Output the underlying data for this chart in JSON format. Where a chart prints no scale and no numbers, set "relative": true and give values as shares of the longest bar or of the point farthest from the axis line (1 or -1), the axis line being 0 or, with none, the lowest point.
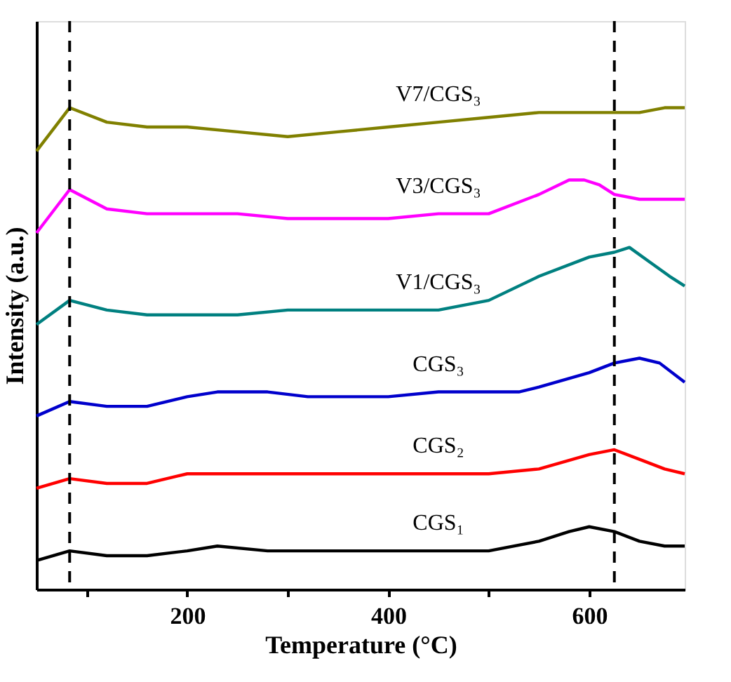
{
  "chart_data": {
    "type": "line",
    "relative": true,
    "xlabel": "Temperature (°C)",
    "ylabel": "Intensity (a.u.)",
    "xlim": [
      50,
      695
    ],
    "xticks": [
      {
        "value": 100,
        "label": null
      },
      200,
      {
        "value": 300,
        "label": null
      },
      400,
      {
        "value": 500,
        "label": null
      },
      600
    ],
    "grid": false,
    "legend": false,
    "line_style": "solid",
    "marker": "none",
    "ref_lines": [
      {
        "axis": "x",
        "value": 83,
        "label": null,
        "color": "#000000",
        "line_style": "dashed"
      },
      {
        "axis": "x",
        "value": 625,
        "label": null,
        "color": "#000000",
        "line_style": "dashed"
      }
    ],
    "series": [
      {
        "name": "V7/CGS₃",
        "color": "#808000",
        "x": [
          50,
          83,
          120,
          160,
          200,
          250,
          300,
          350,
          400,
          450,
          500,
          550,
          600,
          625,
          650,
          675,
          695
        ],
        "values": [
          0.91,
          1.0,
          0.97,
          0.96,
          0.96,
          0.95,
          0.94,
          0.95,
          0.96,
          0.97,
          0.98,
          0.99,
          0.99,
          0.99,
          0.99,
          1.0,
          1.0
        ]
      },
      {
        "name": "V3/CGS₃",
        "color": "#ff00ff",
        "x": [
          50,
          83,
          120,
          160,
          200,
          250,
          300,
          350,
          400,
          450,
          500,
          550,
          580,
          595,
          610,
          625,
          650,
          675,
          695
        ],
        "values": [
          0.74,
          0.83,
          0.79,
          0.78,
          0.78,
          0.78,
          0.77,
          0.77,
          0.77,
          0.78,
          0.78,
          0.82,
          0.85,
          0.85,
          0.84,
          0.82,
          0.81,
          0.81,
          0.81
        ]
      },
      {
        "name": "V1/CGS₃",
        "color": "#008080",
        "x": [
          50,
          83,
          120,
          160,
          200,
          250,
          300,
          350,
          400,
          450,
          500,
          550,
          600,
          625,
          640,
          660,
          680,
          695
        ],
        "values": [
          0.55,
          0.6,
          0.58,
          0.57,
          0.57,
          0.57,
          0.58,
          0.58,
          0.58,
          0.58,
          0.6,
          0.65,
          0.69,
          0.7,
          0.71,
          0.68,
          0.65,
          0.63
        ]
      },
      {
        "name": "CGS₃",
        "color": "#0000cc",
        "x": [
          50,
          83,
          120,
          160,
          200,
          230,
          280,
          320,
          350,
          400,
          450,
          500,
          530,
          550,
          600,
          625,
          650,
          670,
          695
        ],
        "values": [
          0.36,
          0.39,
          0.38,
          0.38,
          0.4,
          0.41,
          0.41,
          0.4,
          0.4,
          0.4,
          0.41,
          0.41,
          0.41,
          0.42,
          0.45,
          0.47,
          0.48,
          0.47,
          0.43
        ]
      },
      {
        "name": "CGS₂",
        "color": "#ff0000",
        "x": [
          50,
          83,
          120,
          160,
          200,
          230,
          300,
          350,
          400,
          450,
          500,
          550,
          600,
          625,
          650,
          675,
          695
        ],
        "values": [
          0.21,
          0.23,
          0.22,
          0.22,
          0.24,
          0.24,
          0.24,
          0.24,
          0.24,
          0.24,
          0.24,
          0.25,
          0.28,
          0.29,
          0.27,
          0.25,
          0.24
        ]
      },
      {
        "name": "CGS₁",
        "color": "#000000",
        "x": [
          50,
          83,
          120,
          160,
          200,
          230,
          280,
          320,
          350,
          400,
          450,
          500,
          550,
          580,
          600,
          625,
          650,
          675,
          695
        ],
        "values": [
          0.06,
          0.08,
          0.07,
          0.07,
          0.08,
          0.09,
          0.08,
          0.08,
          0.08,
          0.08,
          0.08,
          0.08,
          0.1,
          0.12,
          0.13,
          0.12,
          0.1,
          0.09,
          0.09
        ]
      }
    ]
  }
}
